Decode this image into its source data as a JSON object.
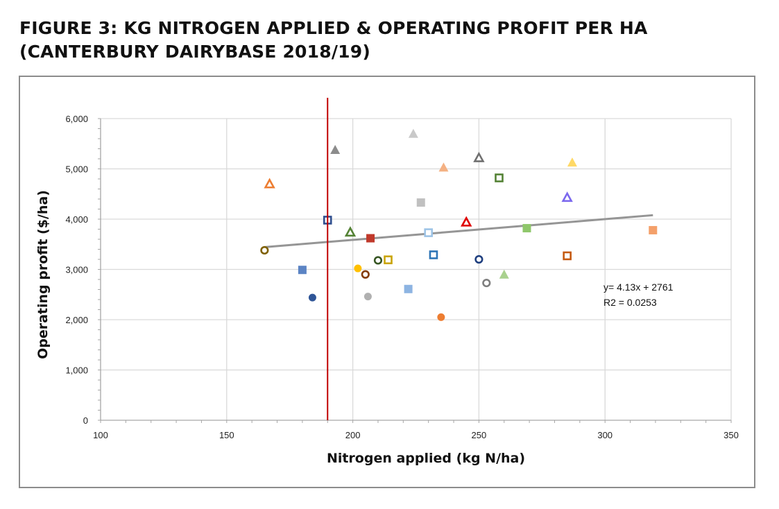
{
  "title": {
    "line1": "FIGURE 3: KG NITROGEN APPLIED & OPERATING PROFIT PER HA",
    "line2": "(CANTERBURY DAIRYBASE 2018/19)"
  },
  "chart_data": {
    "type": "scatter",
    "xlabel": "Nitrogen applied (kg N/ha)",
    "ylabel": "Operating profit ($/ha)",
    "xlim": [
      100,
      350
    ],
    "ylim": [
      0,
      6000
    ],
    "x_ticks": [
      100,
      150,
      200,
      250,
      300,
      350
    ],
    "y_ticks": [
      0,
      1000,
      2000,
      3000,
      4000,
      5000,
      6000
    ],
    "x_tick_labels": [
      "100",
      "150",
      "200",
      "250",
      "300",
      "350"
    ],
    "y_tick_labels": [
      "0",
      "1,000",
      "2,000",
      "3,000",
      "4,000",
      "5,000",
      "6,000"
    ],
    "grid": true,
    "reference_line": {
      "x": 190,
      "color": "#c00000"
    },
    "trendline": {
      "slope": 4.13,
      "intercept": 2761,
      "x_range": [
        165,
        319
      ],
      "color": "#959595",
      "equation_label": "y= 4.13x + 2761",
      "r2_label": "R2 = 0.0253"
    },
    "points": [
      {
        "x": 167,
        "y": 4700,
        "shape": "triangle-open",
        "color": "#ed7d31"
      },
      {
        "x": 193,
        "y": 5380,
        "shape": "triangle",
        "color": "#8c8c8c"
      },
      {
        "x": 224,
        "y": 5700,
        "shape": "triangle",
        "color": "#c9c9c9"
      },
      {
        "x": 236,
        "y": 5030,
        "shape": "triangle",
        "color": "#f4b183"
      },
      {
        "x": 250,
        "y": 5220,
        "shape": "triangle-open",
        "color": "#707070"
      },
      {
        "x": 287,
        "y": 5130,
        "shape": "triangle",
        "color": "#ffd966"
      },
      {
        "x": 258,
        "y": 4820,
        "shape": "square-open",
        "color": "#548235"
      },
      {
        "x": 285,
        "y": 4430,
        "shape": "triangle-open",
        "color": "#7b68ee"
      },
      {
        "x": 227,
        "y": 4330,
        "shape": "square",
        "color": "#c0c0c0"
      },
      {
        "x": 190,
        "y": 3980,
        "shape": "square-open",
        "color": "#2f4f8f"
      },
      {
        "x": 245,
        "y": 3940,
        "shape": "triangle-open",
        "color": "#e00000"
      },
      {
        "x": 199,
        "y": 3740,
        "shape": "triangle-open",
        "color": "#548235"
      },
      {
        "x": 230,
        "y": 3730,
        "shape": "square-open",
        "color": "#9dc3e6"
      },
      {
        "x": 269,
        "y": 3820,
        "shape": "square",
        "color": "#8fc76b"
      },
      {
        "x": 319,
        "y": 3780,
        "shape": "square",
        "color": "#f4a06a"
      },
      {
        "x": 207,
        "y": 3620,
        "shape": "square",
        "color": "#c0392b"
      },
      {
        "x": 165,
        "y": 3380,
        "shape": "circle-open",
        "color": "#7f6000"
      },
      {
        "x": 232,
        "y": 3290,
        "shape": "square-open",
        "color": "#2e75b6"
      },
      {
        "x": 285,
        "y": 3270,
        "shape": "square-open",
        "color": "#c55a11"
      },
      {
        "x": 250,
        "y": 3200,
        "shape": "circle-open",
        "color": "#1f3f7f"
      },
      {
        "x": 210,
        "y": 3180,
        "shape": "circle-open",
        "color": "#375623"
      },
      {
        "x": 214,
        "y": 3190,
        "shape": "square-open",
        "color": "#c9a400"
      },
      {
        "x": 180,
        "y": 2990,
        "shape": "square",
        "color": "#5b84c4"
      },
      {
        "x": 202,
        "y": 3020,
        "shape": "circle",
        "color": "#ffc000"
      },
      {
        "x": 205,
        "y": 2900,
        "shape": "circle-open",
        "color": "#843c0c"
      },
      {
        "x": 260,
        "y": 2900,
        "shape": "triangle",
        "color": "#a9d18e"
      },
      {
        "x": 253,
        "y": 2730,
        "shape": "circle-open",
        "color": "#7f7f7f"
      },
      {
        "x": 222,
        "y": 2610,
        "shape": "square",
        "color": "#8db4e2"
      },
      {
        "x": 184,
        "y": 2440,
        "shape": "circle",
        "color": "#2f5597"
      },
      {
        "x": 206,
        "y": 2460,
        "shape": "circle",
        "color": "#b0b0b0"
      },
      {
        "x": 235,
        "y": 2050,
        "shape": "circle",
        "color": "#ed7d31"
      }
    ]
  }
}
